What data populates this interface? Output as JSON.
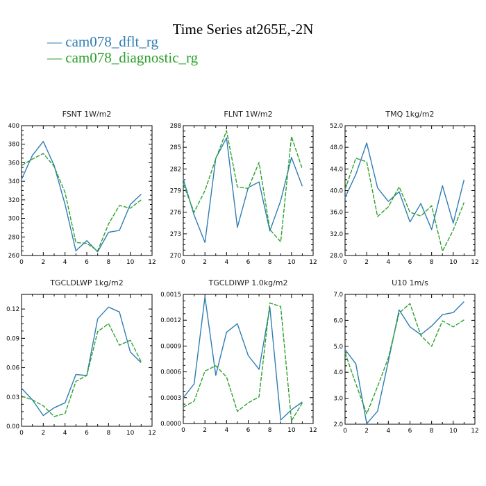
{
  "title": "Time Series at265E,-2N",
  "legend": [
    {
      "label": "cam078_dflt_rg",
      "color": "#2e7db4",
      "dash": "—"
    },
    {
      "label": "cam078_diagnostic_rg",
      "color": "#2ca02c",
      "dash": "—"
    }
  ],
  "chart_data": [
    {
      "type": "line",
      "title": "FSNT   1W/m2",
      "x": [
        0,
        1,
        2,
        3,
        4,
        5,
        6,
        7,
        8,
        9,
        10,
        11
      ],
      "xlim": [
        0,
        12
      ],
      "xticks": [
        "0",
        "2",
        "4",
        "6",
        "8",
        "10",
        "12"
      ],
      "ylim": [
        260,
        400
      ],
      "yticks": [
        "260",
        "280",
        "300",
        "320",
        "340",
        "360",
        "380",
        "400"
      ],
      "series": [
        {
          "name": "cam078_dflt_rg",
          "values": [
            342,
            368,
            383,
            357,
            315,
            265,
            276,
            264,
            285,
            287,
            315,
            326
          ]
        },
        {
          "name": "cam078_diagnostic_rg",
          "values": [
            357,
            364,
            370,
            356,
            328,
            274,
            273,
            265,
            294,
            314,
            311,
            320
          ]
        }
      ]
    },
    {
      "type": "line",
      "title": "FLNT   1W/m2",
      "x": [
        0,
        1,
        2,
        3,
        4,
        5,
        6,
        7,
        8,
        9,
        10,
        11
      ],
      "xlim": [
        0,
        12
      ],
      "xticks": [
        "0",
        "2",
        "4",
        "6",
        "8",
        "10",
        "12"
      ],
      "ylim": [
        270,
        288
      ],
      "yticks": [
        "270",
        "273",
        "276",
        "279",
        "282",
        "285",
        "288"
      ],
      "series": [
        {
          "name": "cam078_dflt_rg",
          "values": [
            280.6,
            275.6,
            271.8,
            283.5,
            286.3,
            273.9,
            279.4,
            280.2,
            273.4,
            277.6,
            283.6,
            279.6
          ]
        },
        {
          "name": "cam078_diagnostic_rg",
          "values": [
            279.9,
            276.0,
            279.0,
            283.4,
            287.3,
            279.5,
            279.3,
            282.9,
            273.6,
            271.9,
            286.5,
            282.0
          ]
        }
      ]
    },
    {
      "type": "line",
      "title": "TMQ   1kg/m2",
      "x": [
        0,
        1,
        2,
        3,
        4,
        5,
        6,
        7,
        8,
        9,
        10,
        11
      ],
      "xlim": [
        0,
        12
      ],
      "xticks": [
        "0",
        "2",
        "4",
        "6",
        "8",
        "10",
        "12"
      ],
      "ylim": [
        28,
        52
      ],
      "yticks": [
        "28.0",
        "32.0",
        "36.0",
        "40.0",
        "44.0",
        "48.0",
        "52.0"
      ],
      "series": [
        {
          "name": "cam078_dflt_rg",
          "values": [
            38.7,
            43.0,
            48.8,
            40.5,
            38.0,
            39.8,
            34.2,
            37.6,
            32.8,
            40.9,
            34.0,
            42.0
          ]
        },
        {
          "name": "cam078_diagnostic_rg",
          "values": [
            40.2,
            46.0,
            45.3,
            35.2,
            37.0,
            40.7,
            36.0,
            35.3,
            37.2,
            28.8,
            32.7,
            37.8
          ]
        }
      ]
    },
    {
      "type": "line",
      "title": "TGCLDLWP   1kg/m2",
      "x": [
        0,
        1,
        2,
        3,
        4,
        5,
        6,
        7,
        8,
        9,
        10,
        11
      ],
      "xlim": [
        0,
        12
      ],
      "xticks": [
        "0",
        "2",
        "4",
        "6",
        "8",
        "10",
        "12"
      ],
      "ylim": [
        0,
        0.135
      ],
      "ytick_values": [
        0,
        0.03,
        0.06,
        0.09,
        0.12
      ],
      "yticks": [
        "0.00",
        "0.03",
        "0.06",
        "0.09",
        "0.12"
      ],
      "series": [
        {
          "name": "cam078_dflt_rg",
          "values": [
            0.039,
            0.027,
            0.011,
            0.019,
            0.024,
            0.053,
            0.052,
            0.11,
            0.122,
            0.117,
            0.076,
            0.065
          ]
        },
        {
          "name": "cam078_diagnostic_rg",
          "values": [
            0.031,
            0.027,
            0.021,
            0.01,
            0.013,
            0.046,
            0.052,
            0.097,
            0.105,
            0.083,
            0.088,
            0.066
          ]
        }
      ]
    },
    {
      "type": "line",
      "title": "TGCLDIWP   1.0kg/m2",
      "x": [
        0,
        1,
        2,
        3,
        4,
        5,
        6,
        7,
        8,
        9,
        10,
        11
      ],
      "xlim": [
        0,
        12
      ],
      "xticks": [
        "0",
        "2",
        "4",
        "6",
        "8",
        "10",
        "12"
      ],
      "ylim": [
        0,
        0.0015
      ],
      "yticks": [
        "0.0000",
        "0.0003",
        "0.0006",
        "0.0009",
        "0.0012",
        "0.0015"
      ],
      "series": [
        {
          "name": "cam078_dflt_rg",
          "values": [
            0.0003,
            0.00046,
            0.00147,
            0.00056,
            0.00106,
            0.00116,
            0.00079,
            0.00063,
            0.00135,
            4e-05,
            0.00016,
            0.00025
          ]
        },
        {
          "name": "cam078_diagnostic_rg",
          "values": [
            0.00019,
            0.00026,
            0.00061,
            0.00067,
            0.00054,
            0.00014,
            0.00024,
            0.00031,
            0.0014,
            0.00136,
            3e-05,
            0.00024
          ]
        }
      ]
    },
    {
      "type": "line",
      "title": "U10   1m/s",
      "x": [
        0,
        1,
        2,
        3,
        4,
        5,
        6,
        7,
        8,
        9,
        10,
        11
      ],
      "xlim": [
        0,
        12
      ],
      "xticks": [
        "0",
        "2",
        "4",
        "6",
        "8",
        "10",
        "12"
      ],
      "ylim": [
        2.0,
        7.0
      ],
      "yticks": [
        "2.0",
        "3.0",
        "4.0",
        "5.0",
        "6.0",
        "7.0"
      ],
      "series": [
        {
          "name": "cam078_dflt_rg",
          "values": [
            4.88,
            4.32,
            2.02,
            2.5,
            4.42,
            6.4,
            5.75,
            5.45,
            5.78,
            6.22,
            6.3,
            6.72
          ]
        },
        {
          "name": "cam078_diagnostic_rg",
          "values": [
            4.75,
            3.55,
            2.4,
            3.45,
            4.55,
            6.28,
            6.65,
            5.42,
            5.0,
            5.98,
            5.75,
            6.02
          ]
        }
      ]
    }
  ]
}
